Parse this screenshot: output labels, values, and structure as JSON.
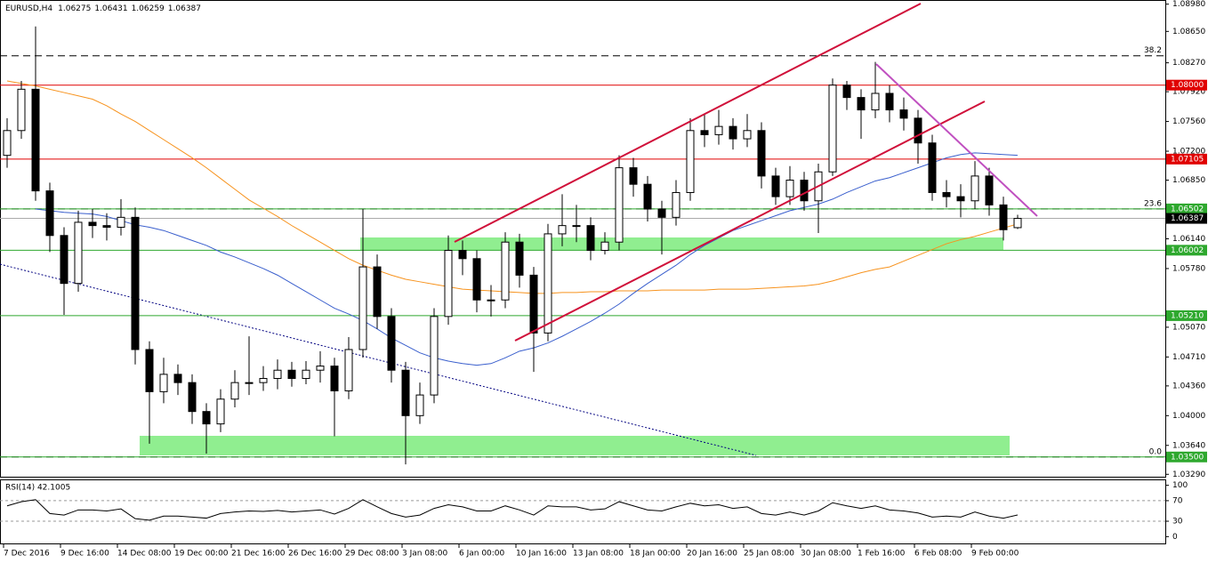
{
  "chart_data": {
    "type": "candlestick",
    "title": "EURUSD,H4",
    "categories": [
      "7 Dec 2016",
      null,
      null,
      null,
      "9 Dec 16:00",
      null,
      null,
      null,
      "14 Dec 08:00",
      null,
      null,
      null,
      "19 Dec 00:00",
      null,
      null,
      null,
      "21 Dec 16:00",
      null,
      null,
      null,
      "26 Dec 16:00",
      null,
      null,
      null,
      "29 Dec 08:00",
      null,
      null,
      null,
      "3 Jan 08:00",
      null,
      null,
      null,
      "6 Jan 00:00",
      null,
      null,
      null,
      "10 Jan 16:00",
      null,
      null,
      null,
      "13 Jan 08:00",
      null,
      null,
      null,
      "18 Jan 00:00",
      null,
      null,
      null,
      "20 Jan 16:00",
      null,
      null,
      null,
      "25 Jan 08:00",
      null,
      null,
      null,
      "30 Jan 08:00",
      null,
      null,
      null,
      "1 Feb 16:00",
      null,
      null,
      null,
      "6 Feb 08:00",
      null,
      null,
      null,
      "9 Feb 00:00",
      null,
      null,
      null
    ],
    "open": [
      1.0715,
      1.0745,
      1.0795,
      1.0672,
      1.0618,
      1.056,
      1.0634,
      1.063,
      1.0628,
      1.064,
      1.048,
      1.0429,
      1.045,
      1.044,
      1.0405,
      1.039,
      1.042,
      1.044,
      1.044,
      1.0445,
      1.0455,
      1.0445,
      1.0455,
      1.046,
      1.043,
      1.048,
      1.058,
      1.052,
      1.0455,
      1.04,
      1.0425,
      1.052,
      1.06,
      1.059,
      1.054,
      1.054,
      1.061,
      1.057,
      1.05,
      1.062,
      1.063,
      1.063,
      1.06,
      1.061,
      1.07,
      1.068,
      1.065,
      1.064,
      1.067,
      1.0745,
      1.074,
      1.075,
      1.0735,
      1.0745,
      1.069,
      1.0665,
      1.0685,
      1.066,
      1.0695,
      1.08,
      1.0785,
      1.077,
      1.079,
      1.077,
      1.076,
      1.073,
      1.067,
      1.0665,
      1.066,
      1.069,
      1.0655,
      1.06275
    ],
    "high": [
      1.076,
      1.0805,
      1.0871,
      1.0682,
      1.0628,
      1.0648,
      1.065,
      1.0645,
      1.0662,
      1.0652,
      1.049,
      1.047,
      1.0462,
      1.045,
      1.0415,
      1.0432,
      1.0455,
      1.0496,
      1.046,
      1.0468,
      1.0465,
      1.0466,
      1.0478,
      1.047,
      1.0495,
      1.065,
      1.0595,
      1.053,
      1.0465,
      1.044,
      1.053,
      1.0618,
      1.0612,
      1.06,
      1.0558,
      1.0622,
      1.062,
      1.058,
      1.0632,
      1.0668,
      1.0655,
      1.064,
      1.0622,
      1.0715,
      1.0712,
      1.069,
      1.066,
      1.0685,
      1.076,
      1.0765,
      1.077,
      1.076,
      1.0765,
      1.0755,
      1.07,
      1.0702,
      1.0695,
      1.0705,
      1.0808,
      1.0805,
      1.0795,
      1.0828,
      1.08,
      1.0785,
      1.077,
      1.074,
      1.0685,
      1.068,
      1.0708,
      1.07,
      1.0665,
      1.06431
    ],
    "low": [
      1.07,
      1.0735,
      1.066,
      1.0598,
      1.0522,
      1.055,
      1.0615,
      1.0612,
      1.0618,
      1.0462,
      1.0366,
      1.0415,
      1.0425,
      1.039,
      1.0354,
      1.038,
      1.041,
      1.0425,
      1.043,
      1.0432,
      1.0435,
      1.0438,
      1.044,
      1.0375,
      1.042,
      1.047,
      1.0505,
      1.044,
      1.0341,
      1.039,
      1.0415,
      1.051,
      1.057,
      1.0525,
      1.052,
      1.053,
      1.0555,
      1.0453,
      1.049,
      1.0605,
      1.061,
      1.0588,
      1.0595,
      1.06,
      1.0665,
      1.0635,
      1.0595,
      1.063,
      1.066,
      1.0725,
      1.0728,
      1.0722,
      1.0725,
      1.0675,
      1.0655,
      1.0655,
      1.0648,
      1.0621,
      1.069,
      1.077,
      1.0735,
      1.076,
      1.0755,
      1.0745,
      1.0705,
      1.066,
      1.0652,
      1.064,
      1.065,
      1.0642,
      1.0612,
      1.06259
    ],
    "close": [
      1.0745,
      1.0795,
      1.0672,
      1.0618,
      1.056,
      1.0634,
      1.063,
      1.0628,
      1.064,
      1.048,
      1.0429,
      1.045,
      1.044,
      1.0405,
      1.039,
      1.042,
      1.044,
      1.044,
      1.0445,
      1.0455,
      1.0445,
      1.0455,
      1.046,
      1.043,
      1.048,
      1.058,
      1.052,
      1.0455,
      1.04,
      1.0425,
      1.052,
      1.06,
      1.059,
      1.054,
      1.054,
      1.061,
      1.057,
      1.05,
      1.062,
      1.063,
      1.063,
      1.06,
      1.061,
      1.07,
      1.068,
      1.065,
      1.064,
      1.067,
      1.0745,
      1.074,
      1.075,
      1.0735,
      1.0745,
      1.069,
      1.0665,
      1.0685,
      1.066,
      1.0695,
      1.08,
      1.0785,
      1.077,
      1.079,
      1.077,
      1.076,
      1.073,
      1.067,
      1.0665,
      1.066,
      1.069,
      1.0655,
      1.0625,
      1.06387
    ],
    "bull_color": "#ffffff",
    "bear_color": "#000000",
    "series": [
      {
        "color": "#f7931e",
        "values": [
          1.0805,
          1.0802,
          1.0799,
          1.0795,
          1.0791,
          1.0787,
          1.0783,
          1.0775,
          1.0765,
          1.0756,
          1.0745,
          1.0734,
          1.0723,
          1.0712,
          1.07,
          1.0687,
          1.0674,
          1.0661,
          1.0651,
          1.0641,
          1.063,
          1.062,
          1.061,
          1.06,
          1.059,
          1.0582,
          1.0576,
          1.057,
          1.0565,
          1.0562,
          1.0559,
          1.0556,
          1.0553,
          1.0552,
          1.0551,
          1.055,
          1.0549,
          1.0548,
          1.0548,
          1.0549,
          1.0549,
          1.055,
          1.055,
          1.0551,
          1.0551,
          1.0551,
          1.0552,
          1.0552,
          1.0552,
          1.0552,
          1.0553,
          1.0553,
          1.0553,
          1.0554,
          1.0555,
          1.0556,
          1.0557,
          1.0559,
          1.0563,
          1.0568,
          1.0573,
          1.0577,
          1.058,
          1.0587,
          1.0594,
          1.0601,
          1.0608,
          1.0613,
          1.0617,
          1.0622,
          1.0627,
          1.0632
        ]
      },
      {
        "color": "#3a5fcd",
        "values": [
          null,
          null,
          1.065,
          1.0648,
          1.0646,
          1.0645,
          1.0644,
          1.0641,
          1.0636,
          1.0631,
          1.0628,
          1.0624,
          1.0618,
          1.0612,
          1.0606,
          1.0598,
          1.0592,
          1.0585,
          1.0578,
          1.057,
          1.056,
          1.055,
          1.054,
          1.053,
          1.0523,
          1.0515,
          1.0505,
          1.0494,
          1.0485,
          1.0476,
          1.047,
          1.0466,
          1.0463,
          1.0461,
          1.0463,
          1.047,
          1.0478,
          1.0482,
          1.0488,
          1.0496,
          1.0505,
          1.0514,
          1.0524,
          1.0535,
          1.0548,
          1.056,
          1.0571,
          1.0582,
          1.0595,
          1.0606,
          1.0615,
          1.0624,
          1.063,
          1.0636,
          1.0642,
          1.0648,
          1.0652,
          1.0656,
          1.0662,
          1.067,
          1.0677,
          1.0684,
          1.0688,
          1.0694,
          1.07,
          1.0706,
          1.0712,
          1.0716,
          1.0718,
          1.0717,
          1.0716,
          1.0715
        ]
      }
    ],
    "ylim": [
      1.0325,
      1.0903
    ],
    "yticks": [
      {
        "value": 1.0898,
        "label": "1.08980"
      },
      {
        "value": 1.0865,
        "label": "1.08650"
      },
      {
        "value": 1.0827,
        "label": "1.08270"
      },
      {
        "value": 1.0792,
        "label": "1.07920"
      },
      {
        "value": 1.0756,
        "label": "1.07560"
      },
      {
        "value": 1.072,
        "label": "1.07200"
      },
      {
        "value": 1.0685,
        "label": "1.06850"
      },
      {
        "value": 1.0614,
        "label": "1.06140"
      },
      {
        "value": 1.0578,
        "label": "1.05780"
      },
      {
        "value": 1.0507,
        "label": "1.05070"
      },
      {
        "value": 1.0471,
        "label": "1.04710"
      },
      {
        "value": 1.0436,
        "label": "1.04360"
      },
      {
        "value": 1.04,
        "label": "1.04000"
      },
      {
        "value": 1.0364,
        "label": "1.03640"
      },
      {
        "value": 1.0329,
        "label": "1.03290"
      }
    ],
    "levels": [
      {
        "value": 1.08,
        "label": "1.08000",
        "color": "#e00000"
      },
      {
        "value": 1.07105,
        "label": "1.07105",
        "color": "#e00000"
      },
      {
        "value": 1.06502,
        "label": "1.06502",
        "color": "#2ea82e"
      },
      {
        "value": 1.06002,
        "label": "1.06002",
        "color": "#2ea82e"
      },
      {
        "value": 1.0521,
        "label": "1.05210",
        "color": "#2ea82e"
      },
      {
        "value": 1.035,
        "label": "1.03500",
        "color": "#2ea82e"
      }
    ],
    "fib_levels": [
      {
        "value": 1.08355,
        "label": "38.2"
      },
      {
        "value": 1.06502,
        "label": "23.6"
      },
      {
        "value": 1.035,
        "label": "0.0"
      }
    ],
    "rsi": {
      "label": "RSI(14) 42.1005",
      "color": "#000000",
      "values": [
        60,
        68,
        72,
        45,
        42,
        52,
        52,
        50,
        54,
        35,
        32,
        40,
        40,
        38,
        36,
        45,
        48,
        50,
        49,
        51,
        48,
        50,
        52,
        44,
        55,
        72,
        58,
        45,
        38,
        42,
        55,
        62,
        58,
        50,
        50,
        60,
        52,
        42,
        60,
        58,
        58,
        52,
        54,
        68,
        60,
        52,
        50,
        58,
        65,
        60,
        62,
        55,
        58,
        45,
        42,
        48,
        42,
        50,
        66,
        60,
        55,
        60,
        52,
        50,
        46,
        38,
        40,
        38,
        48,
        40,
        36,
        42.1005
      ],
      "ylim": [
        -15,
        108
      ],
      "yticks": [
        100,
        70,
        30,
        0
      ],
      "dashed_levels": [
        70,
        30
      ]
    }
  }
}
